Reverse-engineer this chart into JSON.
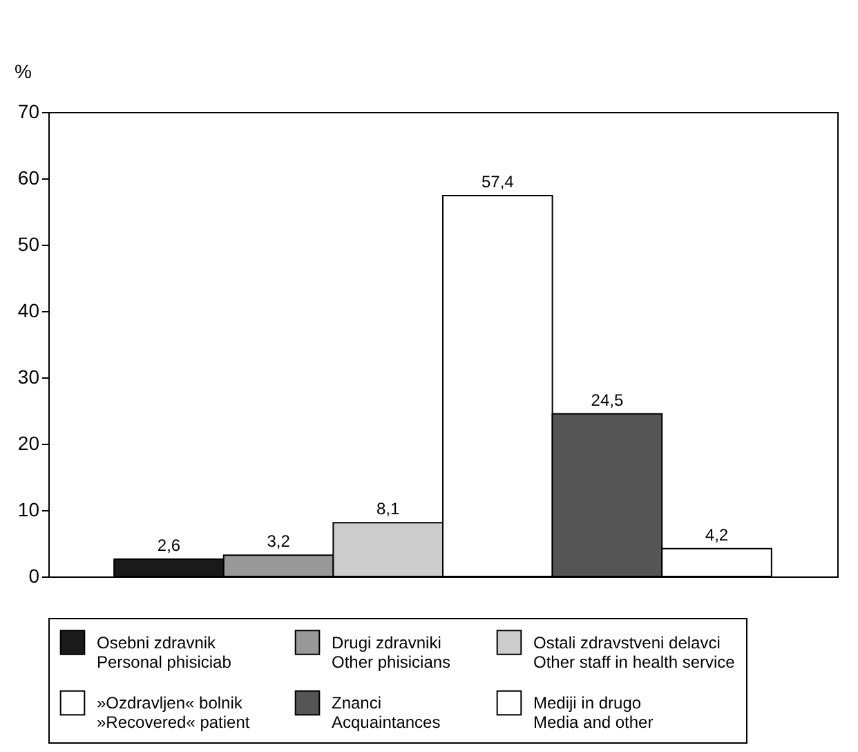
{
  "chart_data": {
    "type": "bar",
    "ylabel": "%",
    "categories": [
      null
    ],
    "series": [
      {
        "name": "Osebni zdravnik\nPersonal phisiciab",
        "color": "#1a1a1a",
        "values": [
          2.6
        ],
        "value_labels": [
          "2,6"
        ]
      },
      {
        "name": "Drugi zdravniki\nOther phisicians",
        "color": "#999999",
        "values": [
          3.2
        ],
        "value_labels": [
          "3,2"
        ]
      },
      {
        "name": "Ostali zdravstveni delavci\nOther staff in health service",
        "color": "#cccccc",
        "values": [
          8.1
        ],
        "value_labels": [
          "8,1"
        ]
      },
      {
        "name": "»Ozdravljen« bolnik\n»Recovered« patient",
        "color": "#ffffff",
        "values": [
          57.4
        ],
        "value_labels": [
          "57,4"
        ]
      },
      {
        "name": "Znanci\nAcquaintances",
        "color": "#555555",
        "values": [
          24.5
        ],
        "value_labels": [
          "24,5"
        ]
      },
      {
        "name": "Mediji in drugo\nMedia and other",
        "color": "#ffffff",
        "values": [
          4.2
        ],
        "value_labels": [
          "4,2"
        ]
      }
    ],
    "ylim": [
      0,
      70
    ],
    "yticks": [
      0,
      10,
      20,
      30,
      40,
      50,
      60,
      70
    ],
    "tick_labels": "y",
    "legend": "bottom"
  }
}
